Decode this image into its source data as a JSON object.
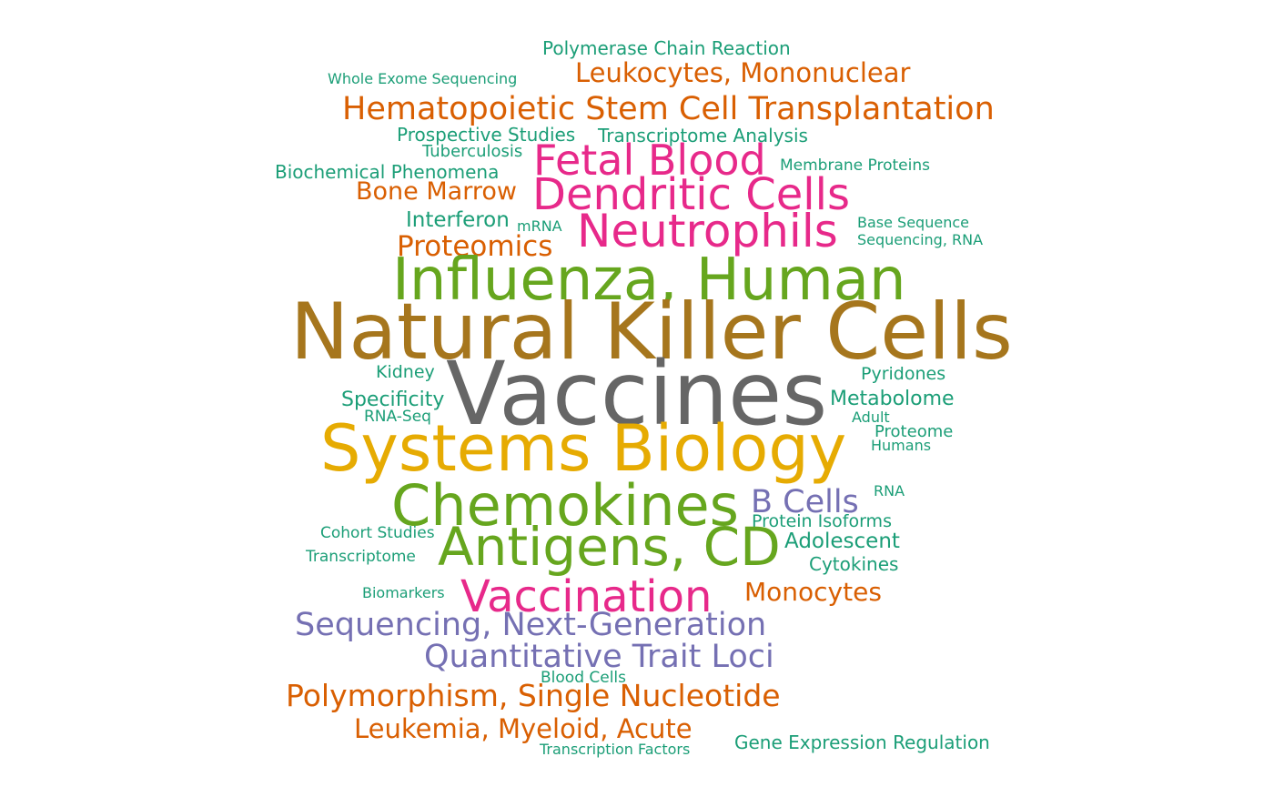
{
  "palette": {
    "teal": "#1b9e77",
    "orange": "#d95f02",
    "purple": "#7570b3",
    "magenta": "#e7298a",
    "green": "#66a61e",
    "gold": "#e6ab02",
    "brown": "#a6761d",
    "gray": "#666666"
  },
  "words": [
    {
      "text": "Polymerase Chain Reaction",
      "color": "teal"
    },
    {
      "text": "Whole Exome Sequencing",
      "color": "teal"
    },
    {
      "text": "Leukocytes, Mononuclear",
      "color": "orange"
    },
    {
      "text": "Hematopoietic Stem Cell Transplantation",
      "color": "orange"
    },
    {
      "text": "Prospective Studies",
      "color": "teal"
    },
    {
      "text": "Transcriptome Analysis",
      "color": "teal"
    },
    {
      "text": "Tuberculosis",
      "color": "teal"
    },
    {
      "text": "Fetal Blood",
      "color": "magenta"
    },
    {
      "text": "Biochemical Phenomena",
      "color": "teal"
    },
    {
      "text": "Membrane Proteins",
      "color": "teal"
    },
    {
      "text": "Bone Marrow",
      "color": "orange"
    },
    {
      "text": "Dendritic Cells",
      "color": "magenta"
    },
    {
      "text": "Interferon",
      "color": "teal"
    },
    {
      "text": "mRNA",
      "color": "teal"
    },
    {
      "text": "Neutrophils",
      "color": "magenta"
    },
    {
      "text": "Base Sequence",
      "color": "teal"
    },
    {
      "text": "Sequencing, RNA",
      "color": "teal"
    },
    {
      "text": "Proteomics",
      "color": "orange"
    },
    {
      "text": "Influenza, Human",
      "color": "green"
    },
    {
      "text": "Natural Killer Cells",
      "color": "brown"
    },
    {
      "text": "Kidney",
      "color": "teal"
    },
    {
      "text": "Pyridones",
      "color": "teal"
    },
    {
      "text": "Vaccines",
      "color": "gray"
    },
    {
      "text": "Specificity",
      "color": "teal"
    },
    {
      "text": "Metabolome",
      "color": "teal"
    },
    {
      "text": "RNA-Seq",
      "color": "teal"
    },
    {
      "text": "Adult",
      "color": "teal"
    },
    {
      "text": "Proteome",
      "color": "teal"
    },
    {
      "text": "Systems Biology",
      "color": "gold"
    },
    {
      "text": "Humans",
      "color": "teal"
    },
    {
      "text": "Chemokines",
      "color": "green"
    },
    {
      "text": "B Cells",
      "color": "purple"
    },
    {
      "text": "RNA",
      "color": "teal"
    },
    {
      "text": "Cohort Studies",
      "color": "teal"
    },
    {
      "text": "Protein Isoforms",
      "color": "teal"
    },
    {
      "text": "Antigens, CD",
      "color": "green"
    },
    {
      "text": "Adolescent",
      "color": "teal"
    },
    {
      "text": "Transcriptome",
      "color": "teal"
    },
    {
      "text": "Cytokines",
      "color": "teal"
    },
    {
      "text": "Biomarkers",
      "color": "teal"
    },
    {
      "text": "Vaccination",
      "color": "magenta"
    },
    {
      "text": "Monocytes",
      "color": "orange"
    },
    {
      "text": "Sequencing, Next-Generation",
      "color": "purple"
    },
    {
      "text": "Quantitative Trait Loci",
      "color": "purple"
    },
    {
      "text": "Blood Cells",
      "color": "teal"
    },
    {
      "text": "Polymorphism, Single Nucleotide",
      "color": "orange"
    },
    {
      "text": "Leukemia, Myeloid, Acute",
      "color": "orange"
    },
    {
      "text": "Transcription Factors",
      "color": "teal"
    },
    {
      "text": "Gene Expression Regulation",
      "color": "teal"
    }
  ]
}
